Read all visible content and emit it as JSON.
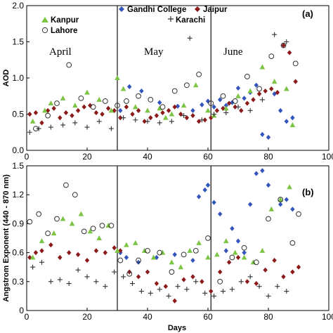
{
  "chart_data": [
    {
      "type": "scatter",
      "panel_label": "(a)",
      "ylabel": "AOD",
      "xlabel": "",
      "xlim": [
        0,
        100
      ],
      "ylim": [
        0,
        2.0
      ],
      "x_ticks": [
        "0",
        "20",
        "40",
        "60",
        "80",
        "100"
      ],
      "y_ticks": [
        "0.0",
        "0.5",
        "1.0",
        "1.5",
        "2.0"
      ],
      "vlines": [
        30,
        61
      ],
      "annotations": [
        {
          "text": "April",
          "x": 12,
          "y": 1.28
        },
        {
          "text": "May",
          "x": 42,
          "y": 1.28
        },
        {
          "text": "June",
          "x": 70,
          "y": 1.28
        }
      ],
      "series": [
        {
          "name": "Gandhi College",
          "marker": "diamond",
          "color": "#3355bb",
          "x": [
            31,
            34,
            38,
            44,
            50,
            55,
            58,
            60,
            62,
            64,
            66,
            68,
            70,
            72,
            74,
            76,
            78,
            80,
            82,
            84,
            86,
            88
          ],
          "y": [
            0.55,
            0.88,
            0.82,
            0.66,
            0.61,
            0.55,
            0.63,
            0.68,
            0.6,
            0.7,
            0.62,
            0.66,
            0.86,
            0.72,
            0.8,
            0.9,
            0.22,
            0.18,
            0.78,
            0.55,
            0.4,
            0.45
          ]
        },
        {
          "name": "Jaipur",
          "marker": "diamond",
          "color": "#8b1a1a",
          "x": [
            1,
            3,
            5,
            7,
            9,
            11,
            13,
            15,
            17,
            19,
            21,
            23,
            25,
            27,
            29,
            31,
            33,
            35,
            37,
            39,
            41,
            43,
            45,
            47,
            49,
            51,
            53,
            55,
            57,
            59,
            61,
            63,
            65,
            67,
            69,
            71,
            73,
            75,
            77,
            79,
            81,
            83,
            85,
            87,
            89
          ],
          "y": [
            0.5,
            0.52,
            0.38,
            0.55,
            0.58,
            0.45,
            0.52,
            0.48,
            0.55,
            0.6,
            0.62,
            0.52,
            0.5,
            0.58,
            0.55,
            0.45,
            0.6,
            0.5,
            0.55,
            0.4,
            0.45,
            0.48,
            0.52,
            0.55,
            0.6,
            0.5,
            0.45,
            0.48,
            0.4,
            0.42,
            0.45,
            0.55,
            0.58,
            0.65,
            0.6,
            0.55,
            0.65,
            0.7,
            0.78,
            0.82,
            0.85,
            0.8,
            1.45,
            1.35,
            0.95
          ]
        },
        {
          "name": "Kanpur",
          "marker": "triangle",
          "color": "#7cc444",
          "x": [
            2,
            6,
            8,
            12,
            16,
            20,
            24,
            28,
            30,
            32,
            36,
            40,
            44,
            46,
            48,
            52,
            56,
            60,
            62,
            66,
            70,
            74,
            78,
            82,
            86,
            88
          ],
          "y": [
            0.4,
            0.55,
            0.65,
            0.72,
            0.62,
            0.8,
            0.7,
            0.55,
            1.0,
            0.85,
            0.6,
            0.55,
            0.58,
            0.45,
            0.5,
            0.62,
            0.9,
            0.55,
            0.48,
            0.58,
            0.75,
            0.82,
            1.15,
            0.95,
            0.85,
            0.35
          ]
        },
        {
          "name": "Lahore",
          "marker": "circle",
          "color": "#333333",
          "x": [
            3,
            7,
            10,
            14,
            18,
            22,
            26,
            30,
            33,
            37,
            41,
            45,
            49,
            53,
            57,
            61,
            65,
            69,
            73,
            77,
            81,
            85,
            89
          ],
          "y": [
            0.3,
            0.48,
            0.65,
            1.18,
            0.72,
            0.6,
            0.68,
            0.62,
            0.68,
            0.75,
            0.7,
            0.6,
            0.82,
            0.9,
            1.05,
            0.65,
            0.75,
            0.68,
            1.02,
            0.85,
            1.3,
            1.45,
            1.2
          ]
        },
        {
          "name": "Karachi",
          "marker": "plus",
          "color": "#333333",
          "x": [
            1,
            4,
            8,
            12,
            16,
            20,
            24,
            28,
            32,
            36,
            40,
            44,
            48,
            52,
            54,
            58,
            62,
            66,
            70,
            74,
            78,
            82,
            86
          ],
          "y": [
            0.25,
            0.3,
            0.32,
            0.35,
            0.38,
            0.32,
            0.4,
            0.3,
            0.45,
            0.42,
            0.4,
            0.38,
            0.4,
            0.48,
            1.55,
            0.42,
            0.5,
            0.52,
            0.6,
            0.55,
            0.7,
            1.6,
            1.5
          ]
        }
      ]
    },
    {
      "type": "scatter",
      "panel_label": "(b)",
      "ylabel": "Angstrom Exponent (440 - 870 nm)",
      "xlabel": "Days",
      "xlim": [
        0,
        100
      ],
      "ylim": [
        0,
        1.5
      ],
      "x_ticks": [
        "0",
        "20",
        "40",
        "60",
        "80",
        "100"
      ],
      "y_ticks": [
        "0",
        "0.3",
        "0.6",
        "0.9",
        "1.2",
        "1.5"
      ],
      "vlines": [
        30,
        61
      ],
      "series": [
        {
          "name": "Gandhi College",
          "marker": "diamond",
          "color": "#3355bb",
          "x": [
            31,
            33,
            37,
            43,
            49,
            55,
            57,
            59,
            60,
            62,
            64,
            66,
            68,
            70,
            72,
            74,
            76,
            78,
            80,
            84,
            86,
            88
          ],
          "y": [
            0.6,
            0.55,
            0.5,
            0.55,
            0.58,
            0.52,
            1.18,
            1.25,
            1.3,
            1.12,
            1.0,
            0.62,
            0.85,
            0.72,
            0.6,
            1.1,
            1.42,
            1.45,
            1.3,
            1.1,
            1.15,
            1.05
          ]
        },
        {
          "name": "Jaipur",
          "marker": "diamond",
          "color": "#8b1a1a",
          "x": [
            1,
            3,
            5,
            8,
            11,
            14,
            17,
            20,
            23,
            26,
            29,
            31,
            34,
            37,
            40,
            43,
            46,
            49,
            52,
            55,
            58,
            61,
            64,
            67,
            70,
            73,
            76,
            79,
            82,
            85,
            88,
            90
          ],
          "y": [
            0.55,
            0.6,
            0.62,
            0.68,
            0.55,
            0.6,
            0.58,
            0.52,
            0.62,
            0.6,
            0.65,
            0.62,
            0.4,
            0.35,
            0.4,
            0.28,
            0.25,
            0.1,
            0.32,
            0.35,
            0.3,
            0.2,
            0.4,
            0.5,
            0.55,
            0.3,
            0.28,
            0.42,
            0.52,
            0.35,
            0.4,
            0.45
          ]
        },
        {
          "name": "Kanpur",
          "marker": "triangle",
          "color": "#7cc444",
          "x": [
            2,
            5,
            9,
            12,
            15,
            18,
            21,
            24,
            27,
            30,
            33,
            36,
            39,
            42,
            45,
            48,
            51,
            54,
            57,
            60,
            63,
            66,
            69,
            72,
            75,
            78,
            81,
            84,
            87
          ],
          "y": [
            0.55,
            0.72,
            0.8,
            0.95,
            0.9,
            1.0,
            0.82,
            0.75,
            0.88,
            0.62,
            0.68,
            0.7,
            0.62,
            0.55,
            0.6,
            0.5,
            0.45,
            0.62,
            0.7,
            0.55,
            0.58,
            0.72,
            0.6,
            0.55,
            0.5,
            0.62,
            1.05,
            1.15,
            1.28
          ]
        },
        {
          "name": "Lahore",
          "marker": "circle",
          "color": "#333333",
          "x": [
            1,
            4,
            7,
            10,
            13,
            16,
            19,
            22,
            25,
            28,
            31,
            34,
            37,
            40,
            44,
            48,
            52,
            56,
            60,
            64,
            68,
            72,
            76,
            80,
            84,
            88,
            90
          ],
          "y": [
            0.92,
            1.0,
            0.8,
            0.95,
            1.3,
            1.2,
            0.82,
            0.85,
            0.88,
            0.88,
            0.52,
            0.38,
            0.52,
            0.62,
            0.6,
            0.4,
            0.58,
            0.62,
            0.75,
            0.3,
            0.55,
            0.65,
            0.5,
            0.95,
            1.15,
            0.7,
            1.0
          ]
        },
        {
          "name": "Karachi",
          "marker": "plus",
          "color": "#333333",
          "x": [
            2,
            5,
            8,
            11,
            14,
            17,
            20,
            23,
            26,
            29,
            32,
            35,
            38,
            41,
            44,
            47,
            50,
            53,
            56,
            59,
            62,
            65,
            68,
            71,
            74,
            77,
            80,
            83,
            86
          ],
          "y": [
            0.45,
            0.5,
            0.3,
            0.32,
            0.28,
            0.42,
            0.35,
            0.3,
            0.25,
            0.4,
            0.35,
            0.28,
            0.2,
            0.18,
            0.22,
            0.15,
            0.25,
            0.22,
            0.3,
            0.18,
            0.15,
            0.2,
            0.22,
            0.3,
            0.35,
            0.25,
            0.15,
            0.25,
            0.2
          ]
        }
      ]
    }
  ]
}
